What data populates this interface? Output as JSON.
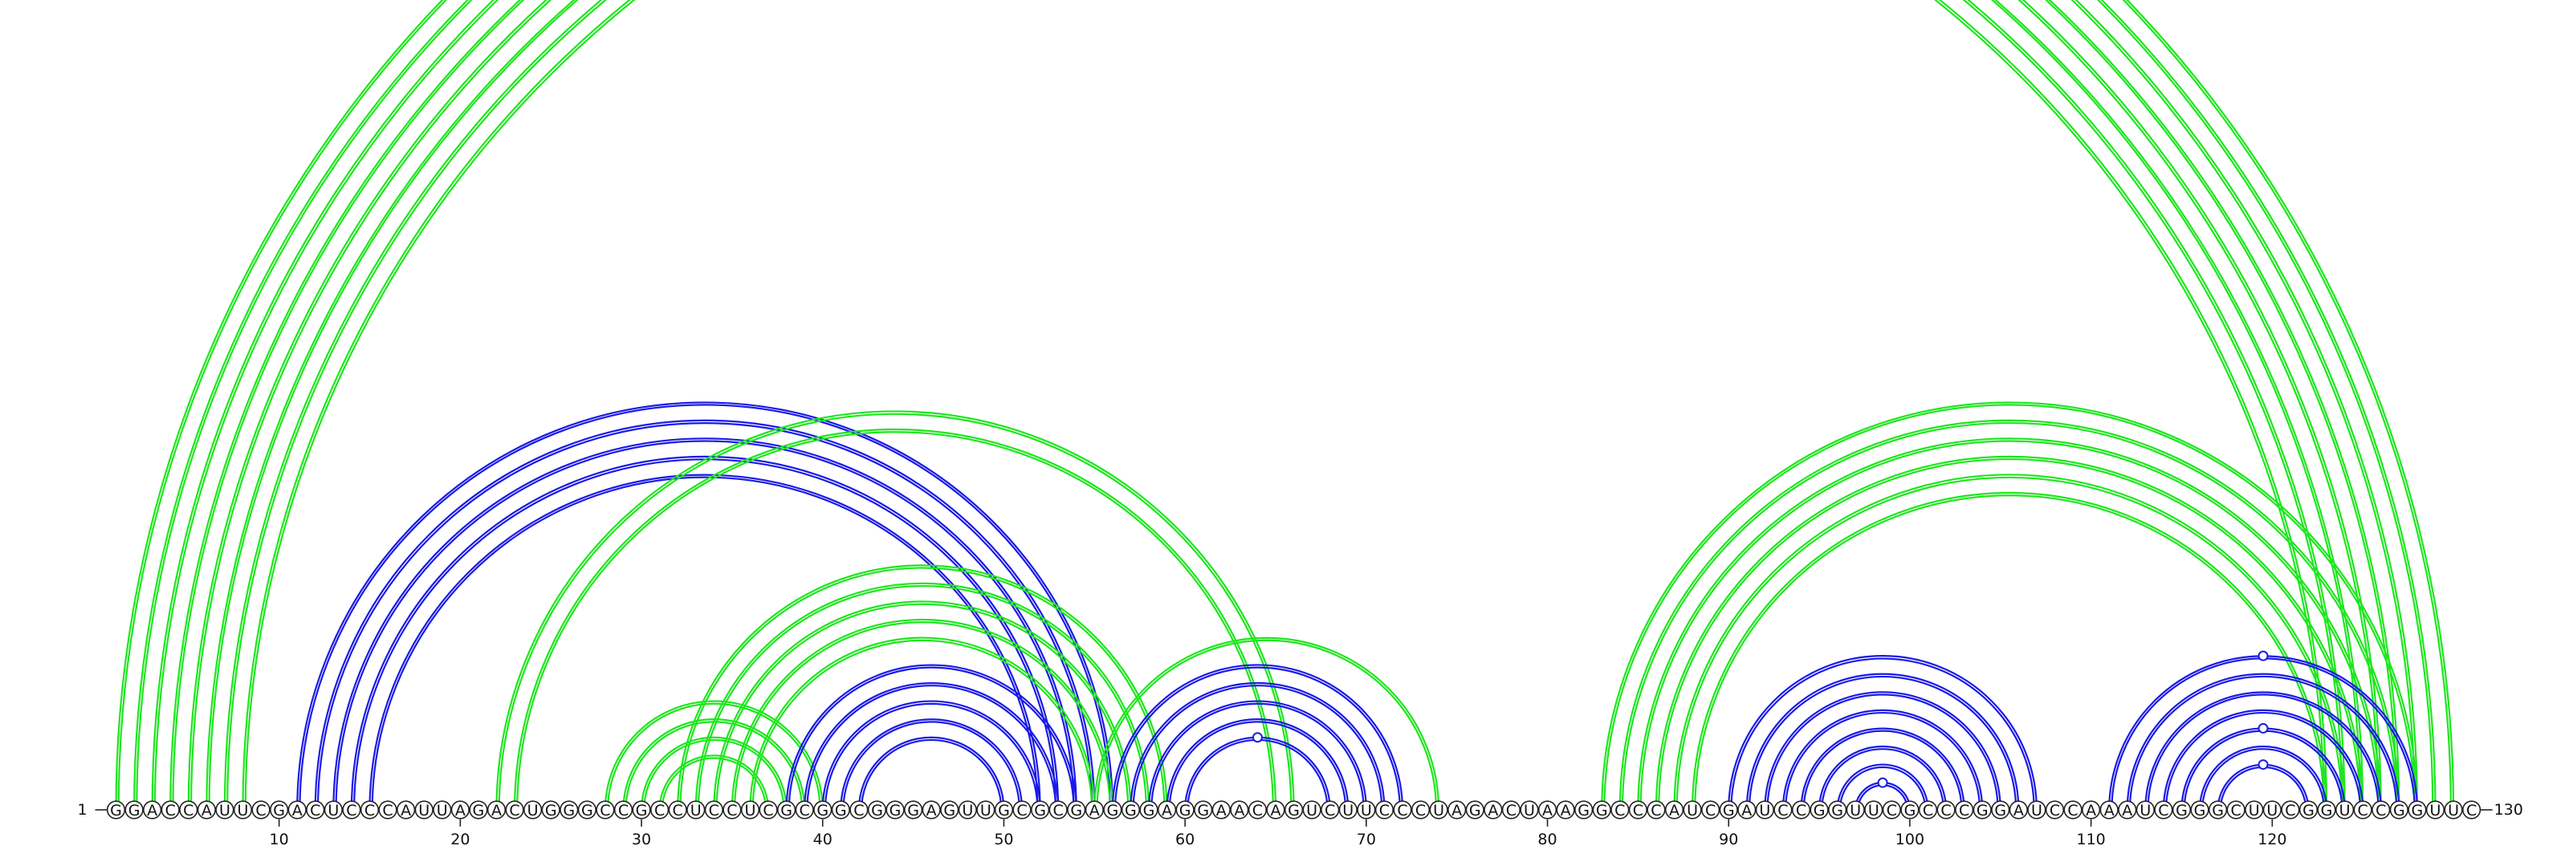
{
  "sequence": "GGACCAUUCGACUCCCAUUAGACUGGGCCGCCUCCUCGCGGCGGGAGUUGCGCGAGGGAGGAACAGUCUUCCCUAGACUAAGGCCCAUCGAUCCGGUUCGCCCGGAUCCAAAUCGGGCUUCGGUCCGGUUC",
  "start_label": "1",
  "end_label": "130",
  "ticks": [
    "10",
    "20",
    "30",
    "40",
    "50",
    "60",
    "70",
    "80",
    "90",
    "100",
    "110",
    "120"
  ],
  "colors": {
    "blue": "#1a1ae6",
    "green": "#1ee61e",
    "outline": "#222222"
  },
  "arc_groups": [
    {
      "color": "green",
      "pairs": [
        [
          1,
          130
        ],
        [
          2,
          129
        ],
        [
          3,
          128
        ],
        [
          4,
          127
        ],
        [
          5,
          126
        ],
        [
          6,
          125
        ],
        [
          7,
          124
        ],
        [
          8,
          123
        ]
      ]
    },
    {
      "color": "blue",
      "pairs": [
        [
          11,
          56
        ],
        [
          12,
          55
        ],
        [
          13,
          54
        ],
        [
          14,
          53
        ],
        [
          15,
          52
        ]
      ]
    },
    {
      "color": "green",
      "pairs": [
        [
          22,
          66
        ],
        [
          23,
          65
        ]
      ]
    },
    {
      "color": "green",
      "pairs": [
        [
          28,
          40
        ],
        [
          29,
          39
        ],
        [
          30,
          38
        ],
        [
          31,
          37
        ]
      ]
    },
    {
      "color": "green",
      "pairs": [
        [
          32,
          59
        ],
        [
          33,
          58
        ],
        [
          34,
          57
        ],
        [
          35,
          56
        ],
        [
          36,
          55
        ]
      ]
    },
    {
      "color": "blue",
      "pairs": [
        [
          38,
          54
        ],
        [
          39,
          53
        ],
        [
          40,
          52
        ],
        [
          41,
          51
        ],
        [
          42,
          50
        ]
      ]
    },
    {
      "color": "green",
      "pairs": [
        [
          55,
          74
        ]
      ]
    },
    {
      "color": "blue",
      "pairs": [
        [
          56,
          72
        ],
        [
          57,
          71
        ],
        [
          58,
          70
        ],
        [
          59,
          69
        ],
        [
          60,
          68
        ]
      ]
    },
    {
      "color": "green",
      "pairs": [
        [
          83,
          128
        ],
        [
          84,
          127
        ],
        [
          85,
          126
        ],
        [
          86,
          125
        ],
        [
          87,
          124
        ],
        [
          88,
          123
        ]
      ]
    },
    {
      "color": "blue",
      "pairs": [
        [
          90,
          107
        ],
        [
          91,
          106
        ],
        [
          92,
          105
        ],
        [
          93,
          104
        ],
        [
          94,
          103
        ],
        [
          95,
          102
        ],
        [
          96,
          101
        ],
        [
          97,
          100
        ]
      ]
    },
    {
      "color": "blue",
      "pairs": [
        [
          111,
          128
        ],
        [
          112,
          127
        ],
        [
          113,
          126
        ],
        [
          114,
          125
        ],
        [
          115,
          124
        ],
        [
          116,
          123
        ],
        [
          117,
          122
        ]
      ]
    }
  ],
  "markers": [
    {
      "i": 1,
      "j": 130,
      "color": "green"
    },
    {
      "i": 60,
      "j": 68,
      "color": "blue"
    },
    {
      "i": 97,
      "j": 100,
      "color": "blue"
    },
    {
      "i": 111,
      "j": 128,
      "color": "blue"
    },
    {
      "i": 115,
      "j": 124,
      "color": "blue"
    },
    {
      "i": 117,
      "j": 122,
      "color": "blue"
    }
  ]
}
